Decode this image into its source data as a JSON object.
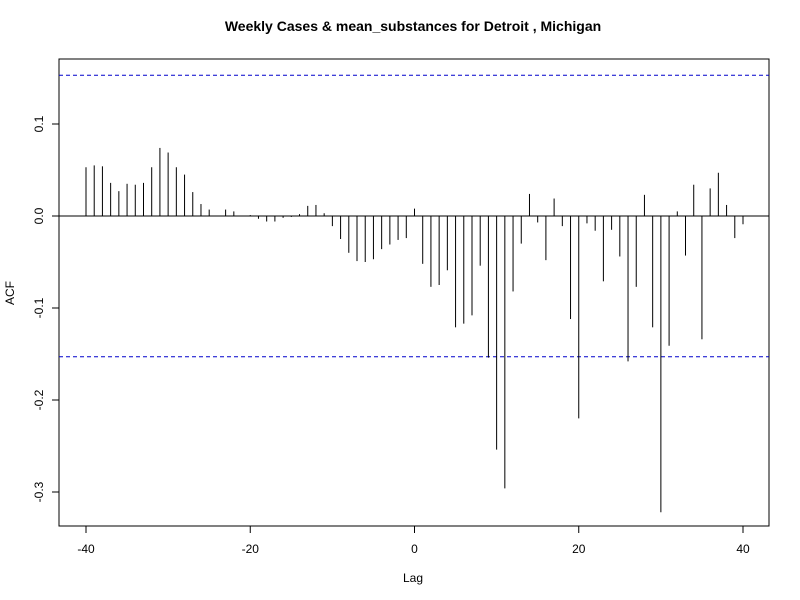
{
  "chart_data": {
    "type": "bar",
    "title": "Weekly Cases & mean_substances for Detroit , Michigan",
    "xlabel": "Lag",
    "ylabel": "ACF",
    "xlim": [
      -41,
      42
    ],
    "ylim": [
      -0.34,
      0.17
    ],
    "xticks": [
      -40,
      -20,
      0,
      20,
      40
    ],
    "xtick_labels": [
      "-40",
      "-20",
      "0",
      "20",
      "40"
    ],
    "yticks": [
      -0.3,
      -0.2,
      -0.1,
      0.0,
      0.1
    ],
    "ytick_labels": [
      "-0.3",
      "-0.2",
      "-0.1",
      "0.0",
      "0.1"
    ],
    "ci": 0.153,
    "colors": {
      "bars": "#000000",
      "ci": "#0000cc",
      "zero": "#000000"
    },
    "x": [
      -40,
      -39,
      -38,
      -37,
      -36,
      -35,
      -34,
      -33,
      -32,
      -31,
      -30,
      -29,
      -28,
      -27,
      -26,
      -25,
      -24,
      -23,
      -22,
      -21,
      -20,
      -19,
      -18,
      -17,
      -16,
      -15,
      -14,
      -13,
      -12,
      -11,
      -10,
      -9,
      -8,
      -7,
      -6,
      -5,
      -4,
      -3,
      -2,
      -1,
      0,
      1,
      2,
      3,
      4,
      5,
      6,
      7,
      8,
      9,
      10,
      11,
      12,
      13,
      14,
      15,
      16,
      17,
      18,
      19,
      20,
      21,
      22,
      23,
      24,
      25,
      26,
      27,
      28,
      29,
      30,
      31,
      32,
      33,
      34,
      35,
      36,
      37,
      38,
      39,
      40
    ],
    "values": [
      0.053,
      0.055,
      0.054,
      0.036,
      0.027,
      0.035,
      0.034,
      0.036,
      0.053,
      0.074,
      0.069,
      0.053,
      0.045,
      0.026,
      0.013,
      0.007,
      0.0,
      0.007,
      0.005,
      0.0,
      0.001,
      -0.003,
      -0.006,
      -0.006,
      -0.002,
      -0.001,
      0.002,
      0.011,
      0.012,
      0.003,
      -0.011,
      -0.025,
      -0.04,
      -0.049,
      -0.05,
      -0.047,
      -0.036,
      -0.031,
      -0.026,
      -0.024,
      0.008,
      -0.052,
      -0.077,
      -0.075,
      -0.059,
      -0.121,
      -0.117,
      -0.108,
      -0.054,
      -0.154,
      -0.254,
      -0.296,
      -0.082,
      -0.03,
      0.024,
      -0.007,
      -0.048,
      0.019,
      -0.011,
      -0.112,
      -0.22,
      -0.008,
      -0.016,
      -0.071,
      -0.015,
      -0.044,
      -0.158,
      -0.077,
      0.023,
      -0.121,
      -0.322,
      -0.141,
      0.005,
      -0.043,
      0.034,
      -0.134,
      0.03,
      0.047,
      0.012,
      -0.024,
      -0.009
    ]
  }
}
